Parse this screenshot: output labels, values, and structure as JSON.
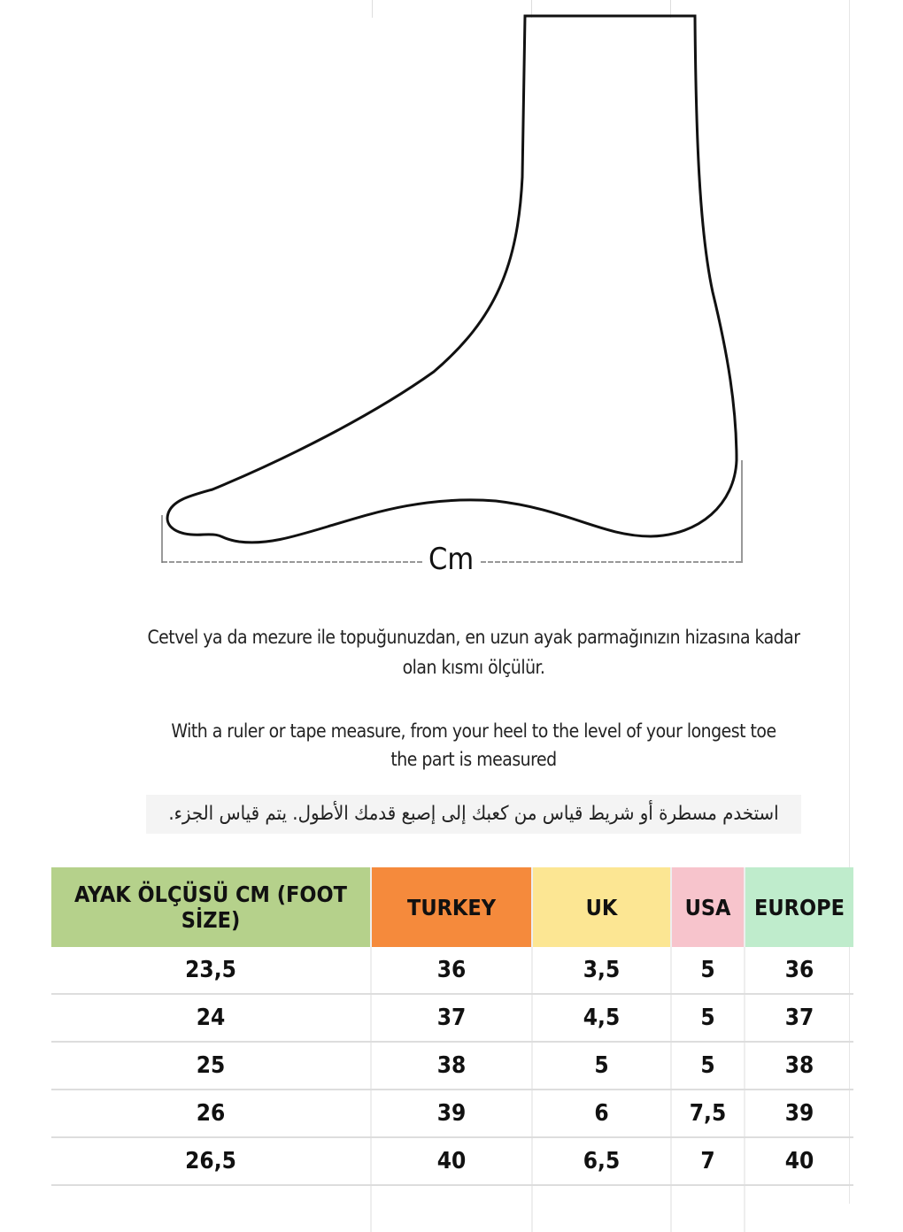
{
  "measurement_label": "Cm",
  "instructions": {
    "turkish_line1": "Cetvel ya da mezure ile topuğunuzdan, en uzun ayak parmağınızın hizasına kadar",
    "turkish_line2": "olan kısmı ölçülür.",
    "english_line1": "With a ruler or tape measure, from your heel to the level of your longest toe",
    "english_line2": "the part is measured",
    "arabic": "استخدم مسطرة أو شريط قياس من كعبك إلى إصبع قدمك الأطول. يتم قياس الجزء."
  },
  "size_table": {
    "headers": [
      {
        "label": "AYAK ÖLÇÜSÜ CM (FOOT SİZE)",
        "color": "#b5d18b"
      },
      {
        "label": "TURKEY",
        "color": "#f58a3c"
      },
      {
        "label": "UK",
        "color": "#fce693"
      },
      {
        "label": "USA",
        "color": "#f7c4cc"
      },
      {
        "label": "EUROPE",
        "color": "#bfeccc"
      }
    ],
    "rows": [
      [
        "23,5",
        "36",
        "3,5",
        "5",
        "36"
      ],
      [
        "24",
        "37",
        "4,5",
        "5",
        "37"
      ],
      [
        "25",
        "38",
        "5",
        "5",
        "38"
      ],
      [
        "26",
        "39",
        "6",
        "7,5",
        "39"
      ],
      [
        "26,5",
        "40",
        "6,5",
        "7",
        "40"
      ]
    ]
  }
}
